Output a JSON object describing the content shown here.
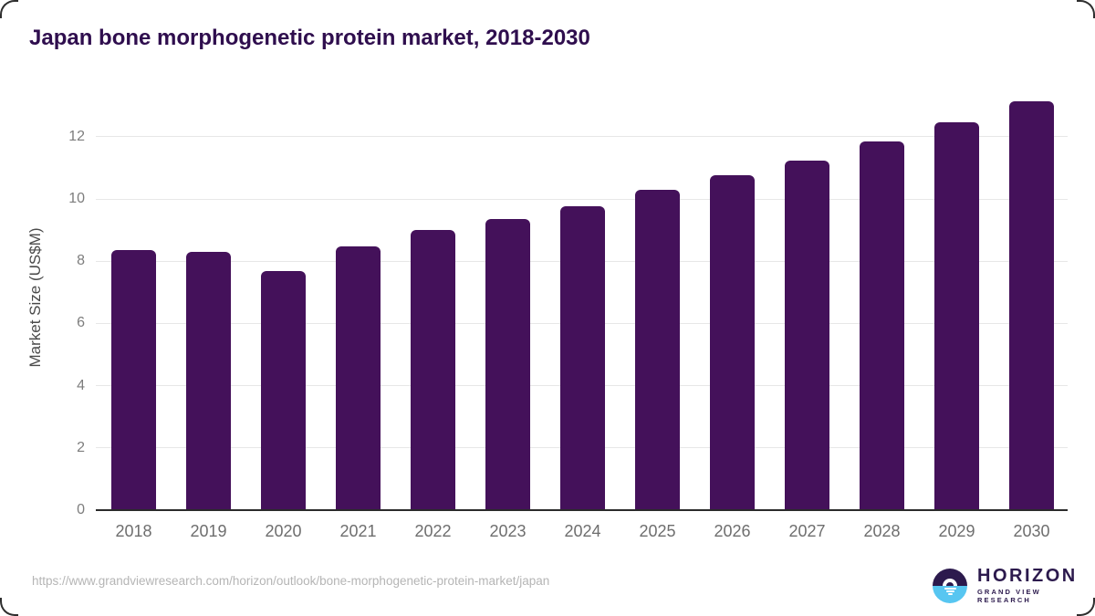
{
  "chart_data": {
    "type": "bar",
    "title": "Japan bone morphogenetic protein market, 2018-2030",
    "categories": [
      "2018",
      "2019",
      "2020",
      "2021",
      "2022",
      "2023",
      "2024",
      "2025",
      "2026",
      "2027",
      "2028",
      "2029",
      "2030"
    ],
    "values": [
      8.37,
      8.29,
      7.68,
      8.48,
      8.99,
      9.36,
      9.78,
      10.29,
      10.76,
      11.22,
      11.86,
      12.45,
      13.14
    ],
    "xlabel": "",
    "ylabel": "Market Size (US$M)",
    "yticks": [
      0,
      2,
      4,
      6,
      8,
      10,
      12
    ],
    "ylim": [
      0,
      13.3
    ],
    "grid": true,
    "legend": false
  },
  "footer": {
    "source_url": "https://www.grandviewresearch.com/horizon/outlook/bone-morphogenetic-protein-market/japan",
    "logo": {
      "brand": "HORIZON",
      "sub_brand": "GRAND VIEW RESEARCH"
    }
  },
  "colors": {
    "bar": "#44115a",
    "title": "#2f0e4e",
    "tick": "#7d7d7d",
    "xlabel": "#6e6e6e",
    "ylabel": "#4a4a4a",
    "grid": "#e7e7e7",
    "baseline": "#2b2b2b",
    "url": "#b5b5b5",
    "logo_purple": "#2c1a4d",
    "logo_blue": "#57c6f1"
  }
}
